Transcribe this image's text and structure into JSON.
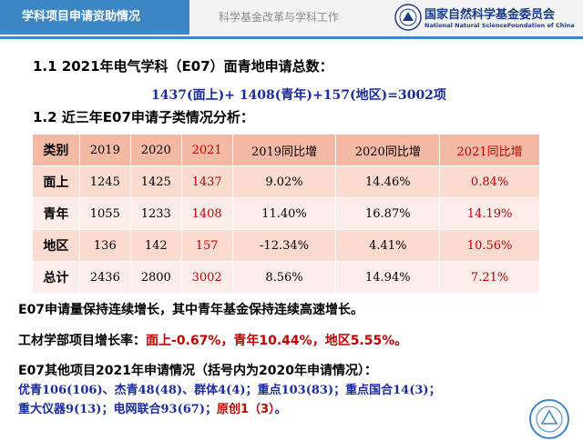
{
  "header": {
    "tab_title": "学科项目申请资助情况",
    "subtitle": "科学基金改革与学科工作",
    "org_cn": "国家自然科学基金委员会",
    "org_en": "National Natural ScienceFoundation of China",
    "accent_color": "#3c86c6"
  },
  "section_1_1": {
    "heading": "1.1   2021年电气学科（E07）面青地申请总数：",
    "formula": "1437(面上)+ 1408(青年)+157(地区)=3002项"
  },
  "section_1_2": {
    "heading": "1.2   近三年E07申请子类情况分析："
  },
  "table": {
    "headers": [
      "类别",
      "2019",
      "2020",
      "2021",
      "2019同比增",
      "2020同比增",
      "2021同比增"
    ],
    "rows": [
      {
        "label": "面上",
        "v2019": "1245",
        "v2020": "1425",
        "v2021": "1437",
        "g2019": "9.02%",
        "g2020": "14.46%",
        "g2021": "0.84%"
      },
      {
        "label": "青年",
        "v2019": "1055",
        "v2020": "1233",
        "v2021": "1408",
        "g2019": "11.40%",
        "g2020": "16.87%",
        "g2021": "14.19%"
      },
      {
        "label": "地区",
        "v2019": "136",
        "v2020": "142",
        "v2021": "157",
        "g2019": "-12.34%",
        "g2020": "4.41%",
        "g2021": "10.56%"
      },
      {
        "label": "总计",
        "v2019": "2436",
        "v2020": "2800",
        "v2021": "3002",
        "g2019": "8.56%",
        "g2020": "14.94%",
        "g2021": "7.21%"
      }
    ]
  },
  "notes": {
    "line1": "E07申请量保持连续增长，其中青年基金保持连续高速增长。",
    "line2_prefix": "工材学部项目增长率：",
    "line2_red": "面上-0.67%，青年10.44%，地区5.55%。",
    "line3": "E07其他项目2021年申请情况（括号内为2020年申请情况）：",
    "line4": {
      "a_name": "优青",
      "a_val": "106(106)",
      "sep1": "、",
      "b_name": "杰青",
      "b_val": "48(48)",
      "sep2": "、",
      "c_name": "群体",
      "c_val": "4(4)",
      "sep3": "；",
      "d_name": "重点",
      "d_val": "103(83)",
      "sep4": "；",
      "e_name": "重点国合",
      "e_val": "14(3)",
      "sep5": "；"
    },
    "line5": {
      "a_name": "重大仪器",
      "a_val": "9(13)",
      "sep1": "；",
      "b_name": "电网联合",
      "b_val": "93(67)",
      "sep2": "；",
      "c_name": "原创",
      "c_val": "1（3）",
      "sep3": "。"
    }
  },
  "colors": {
    "header_row": "#f3b9a5",
    "odd_row": "#fbdad0",
    "even_row": "#fdedea",
    "highlight_red": "#c00000",
    "formula_blue": "#1a2b9e"
  }
}
